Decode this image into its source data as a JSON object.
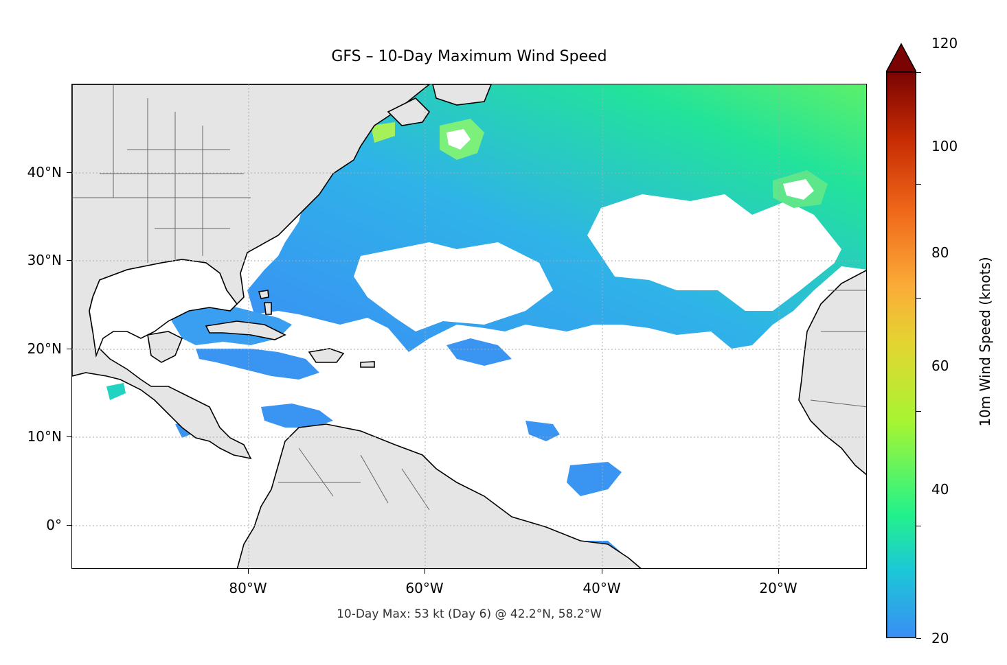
{
  "title": "GFS – 10-Day Maximum Wind Speed",
  "annotation": "10-Day Max: 53 kt (Day 6) @ 42.2°N, 58.2°W",
  "map": {
    "lon_range": [
      -100,
      -10
    ],
    "lat_range": [
      -5,
      50
    ],
    "x_ticks": [
      {
        "lon": -80,
        "label": "80°W"
      },
      {
        "lon": -60,
        "label": "60°W"
      },
      {
        "lon": -40,
        "label": "40°W"
      },
      {
        "lon": -20,
        "label": "20°W"
      }
    ],
    "y_ticks": [
      {
        "lat": 40,
        "label": "40°N"
      },
      {
        "lat": 30,
        "label": "30°N"
      },
      {
        "lat": 20,
        "label": "20°N"
      },
      {
        "lat": 10,
        "label": "10°N"
      },
      {
        "lat": 0,
        "label": "0°"
      }
    ],
    "land_color": "#e5e5e5",
    "gridlines": "dotted"
  },
  "colorbar": {
    "label": "10m Wind Speed (knots)",
    "min": 20,
    "max": 120,
    "extend": "max",
    "ticks": [
      {
        "value": 20,
        "label": "20"
      },
      {
        "value": 40,
        "label": "40"
      },
      {
        "value": 60,
        "label": "60"
      },
      {
        "value": 80,
        "label": "80"
      },
      {
        "value": 100,
        "label": "100"
      },
      {
        "value": 120,
        "label": "120"
      }
    ],
    "colors": [
      "#3a8ef5",
      "#1cc8d6",
      "#23f28a",
      "#a6f532",
      "#e3d531",
      "#fbac38",
      "#f06a1b",
      "#c72c03",
      "#7a0403"
    ]
  },
  "chart_data": {
    "type": "heatmap",
    "title": "GFS – 10-Day Maximum Wind Speed",
    "units": "knots",
    "max_value": 53,
    "max_day": 6,
    "max_lat": 42.2,
    "max_lon": -58.2,
    "value_range": [
      20,
      120
    ]
  }
}
